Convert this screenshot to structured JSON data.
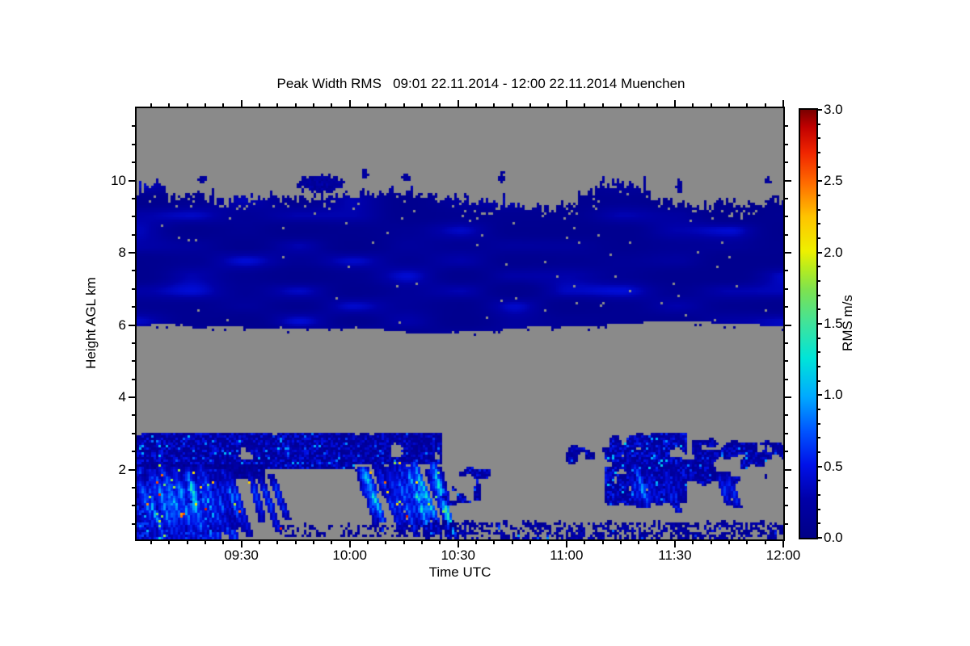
{
  "chart_data": {
    "type": "heatmap",
    "title": "Peak Width RMS   09:01 22.11.2014 - 12:00 22.11.2014 Muenchen",
    "xlabel": "Time UTC",
    "ylabel": "Height AGL km",
    "x_domain_hours": [
      9.016667,
      12.0
    ],
    "y_domain_km": [
      0,
      12
    ],
    "value_domain": [
      0.0,
      3.0
    ],
    "grid": false,
    "background_no_data_color": "#8a8a8a",
    "frame_color": "#000000",
    "x_ticks": [
      {
        "t": 9.5,
        "label": "09:30"
      },
      {
        "t": 10.0,
        "label": "10:00"
      },
      {
        "t": 10.5,
        "label": "10:30"
      },
      {
        "t": 11.0,
        "label": "11:00"
      },
      {
        "t": 11.5,
        "label": "11:30"
      },
      {
        "t": 12.0,
        "label": "12:00"
      }
    ],
    "x_minor_interval_minutes": 5,
    "y_ticks": [
      {
        "km": 2,
        "label": "2"
      },
      {
        "km": 4,
        "label": "4"
      },
      {
        "km": 6,
        "label": "6"
      },
      {
        "km": 8,
        "label": "8"
      },
      {
        "km": 10,
        "label": "10"
      }
    ],
    "y_minor_interval_km": 0.5,
    "colorbar": {
      "label": "RMS m/s",
      "ticks": [
        {
          "v": 0.0,
          "label": "0.0"
        },
        {
          "v": 0.5,
          "label": "0.5"
        },
        {
          "v": 1.0,
          "label": "1.0"
        },
        {
          "v": 1.5,
          "label": "1.5"
        },
        {
          "v": 2.0,
          "label": "2.0"
        },
        {
          "v": 2.5,
          "label": "2.5"
        },
        {
          "v": 3.0,
          "label": "3.0"
        }
      ],
      "minor_interval": 0.1,
      "stops": [
        [
          0.0,
          "#000087"
        ],
        [
          0.09,
          "#0000a8"
        ],
        [
          0.17,
          "#0011e8"
        ],
        [
          0.25,
          "#0055ff"
        ],
        [
          0.33,
          "#00aaff"
        ],
        [
          0.42,
          "#00e5d8"
        ],
        [
          0.5,
          "#3fe39c"
        ],
        [
          0.58,
          "#7ee24f"
        ],
        [
          0.63,
          "#b8ec1e"
        ],
        [
          0.67,
          "#eef000"
        ],
        [
          0.75,
          "#ffc400"
        ],
        [
          0.83,
          "#ff6a00"
        ],
        [
          0.9,
          "#f02500"
        ],
        [
          0.96,
          "#c00000"
        ],
        [
          1.0,
          "#7a0000"
        ]
      ]
    },
    "regions": [
      {
        "kind": "cloud_band",
        "seed": 11,
        "t": [
          9.016667,
          12.0
        ],
        "base_anchors": [
          [
            9.0167,
            6.02
          ],
          [
            9.5,
            5.97
          ],
          [
            10.0,
            5.93
          ],
          [
            10.45,
            5.84
          ],
          [
            10.8,
            5.95
          ],
          [
            11.2,
            6.08
          ],
          [
            11.55,
            6.1
          ],
          [
            11.8,
            6.02
          ],
          [
            12.0,
            5.97
          ]
        ],
        "top_anchors": [
          [
            9.0167,
            9.55
          ],
          [
            9.06,
            9.75
          ],
          [
            9.1,
            9.95
          ],
          [
            9.18,
            9.55
          ],
          [
            9.3,
            9.5
          ],
          [
            9.45,
            9.42
          ],
          [
            9.6,
            9.55
          ],
          [
            9.75,
            9.42
          ],
          [
            9.9,
            9.5
          ],
          [
            10.05,
            9.62
          ],
          [
            10.18,
            9.68
          ],
          [
            10.35,
            9.5
          ],
          [
            10.55,
            9.42
          ],
          [
            10.7,
            9.3
          ],
          [
            10.9,
            9.22
          ],
          [
            11.05,
            9.35
          ],
          [
            11.15,
            9.8
          ],
          [
            11.3,
            9.92
          ],
          [
            11.45,
            9.38
          ],
          [
            11.6,
            9.25
          ],
          [
            11.75,
            9.4
          ],
          [
            11.88,
            9.28
          ],
          [
            11.96,
            9.45
          ],
          [
            12.0,
            9.4
          ]
        ],
        "val": [
          0.06,
          0.45
        ]
      },
      {
        "kind": "blob",
        "seed": 21,
        "c": [
          9.87,
          9.92
        ],
        "r": [
          0.105,
          0.24
        ],
        "val": [
          0.08,
          0.3
        ]
      },
      {
        "kind": "blob",
        "seed": 22,
        "c": [
          9.32,
          10.02
        ],
        "r": [
          0.02,
          0.1
        ],
        "val": [
          0.08,
          0.25
        ]
      },
      {
        "kind": "blob",
        "seed": 23,
        "c": [
          10.07,
          10.18
        ],
        "r": [
          0.014,
          0.16
        ],
        "val": [
          0.08,
          0.25
        ]
      },
      {
        "kind": "blob",
        "seed": 24,
        "c": [
          10.26,
          10.08
        ],
        "r": [
          0.025,
          0.1
        ],
        "val": [
          0.08,
          0.25
        ]
      },
      {
        "kind": "blob",
        "seed": 25,
        "c": [
          10.7,
          10.1
        ],
        "r": [
          0.013,
          0.16
        ],
        "val": [
          0.08,
          0.25
        ]
      },
      {
        "kind": "blob",
        "seed": 26,
        "c": [
          11.52,
          9.85
        ],
        "r": [
          0.015,
          0.2
        ],
        "val": [
          0.08,
          0.25
        ]
      },
      {
        "kind": "blob",
        "seed": 27,
        "c": [
          11.93,
          10.0
        ],
        "r": [
          0.012,
          0.12
        ],
        "val": [
          0.08,
          0.25
        ]
      },
      {
        "kind": "patch_band",
        "seed": 31,
        "t": [
          9.016667,
          10.02
        ],
        "h": [
          2.05,
          3.0
        ],
        "density": 0.88,
        "val": [
          0.1,
          0.55
        ],
        "fleck": 0.05,
        "fval": [
          0.65,
          1.1
        ]
      },
      {
        "kind": "patch_band",
        "seed": 32,
        "t": [
          9.016667,
          9.6
        ],
        "h": [
          1.8,
          2.12
        ],
        "density": 0.95,
        "val": [
          0.05,
          0.3
        ],
        "fleck": 0.01,
        "fval": [
          0.5,
          0.8
        ]
      },
      {
        "kind": "patch_band",
        "seed": 30,
        "t": [
          9.016667,
          9.37
        ],
        "h": [
          0.05,
          1.95
        ],
        "density": 0.8,
        "val": [
          0.25,
          0.7
        ],
        "fleck": 0.04,
        "fval": [
          0.8,
          1.2
        ]
      },
      {
        "kind": "streaks",
        "seed": 41,
        "t": [
          9.016667,
          9.38
        ],
        "n": 26,
        "htop": [
          1.85,
          2.1
        ],
        "hbot": [
          0.0,
          0.3
        ],
        "drift": 0.05,
        "core": [
          0.7,
          1.3
        ],
        "width": 2,
        "hot": 0.02
      },
      {
        "kind": "streaks",
        "seed": 42,
        "t": [
          9.36,
          9.66
        ],
        "n": 12,
        "htop": [
          1.8,
          2.0
        ],
        "hbot": [
          0.15,
          0.65
        ],
        "drift": 0.05,
        "core": [
          0.4,
          0.85
        ],
        "width": 1,
        "hot": 0.008
      },
      {
        "kind": "patch_band",
        "seed": 33,
        "t": [
          10.0,
          10.42
        ],
        "h": [
          2.2,
          3.0
        ],
        "density": 0.82,
        "val": [
          0.1,
          0.5
        ],
        "fleck": 0.03,
        "fval": [
          0.6,
          0.95
        ]
      },
      {
        "kind": "streaks",
        "seed": 43,
        "t": [
          10.04,
          10.4
        ],
        "n": 15,
        "htop": [
          1.95,
          2.2
        ],
        "hbot": [
          0.1,
          0.55
        ],
        "drift": 0.05,
        "core": [
          0.6,
          1.25
        ],
        "width": 2,
        "hot": 0.014
      },
      {
        "kind": "patch_band",
        "seed": 34,
        "t": [
          10.42,
          10.64
        ],
        "h": [
          0.95,
          2.2
        ],
        "density": 0.5,
        "val": [
          0.12,
          0.6
        ],
        "fleck": 0.02,
        "fval": [
          0.6,
          0.9
        ]
      },
      {
        "kind": "patch_band",
        "seed": 35,
        "t": [
          10.6,
          11.0
        ],
        "h": [
          1.5,
          2.85
        ],
        "density": 0.2,
        "val": [
          0.08,
          0.4
        ],
        "fleck": 0.01,
        "fval": [
          0.5,
          0.8
        ]
      },
      {
        "kind": "patch_band",
        "seed": 36,
        "t": [
          11.0,
          11.2
        ],
        "h": [
          2.15,
          2.7
        ],
        "density": 0.55,
        "val": [
          0.08,
          0.4
        ],
        "fleck": 0.02,
        "fval": [
          0.5,
          0.8
        ]
      },
      {
        "kind": "patch_band",
        "seed": 37,
        "t": [
          11.18,
          11.55
        ],
        "h": [
          1.05,
          2.95
        ],
        "density": 0.72,
        "val": [
          0.12,
          0.6
        ],
        "fleck": 0.06,
        "fval": [
          0.65,
          1.15
        ]
      },
      {
        "kind": "streaks",
        "seed": 44,
        "t": [
          11.22,
          11.5
        ],
        "n": 7,
        "htop": [
          1.9,
          2.1
        ],
        "hbot": [
          0.8,
          1.2
        ],
        "drift": 0.05,
        "core": [
          0.4,
          0.9
        ],
        "width": 1,
        "hot": 0.006
      },
      {
        "kind": "patch_band",
        "seed": 38,
        "t": [
          11.55,
          11.92
        ],
        "h": [
          1.6,
          2.9
        ],
        "density": 0.6,
        "val": [
          0.1,
          0.5
        ],
        "fleck": 0.04,
        "fval": [
          0.6,
          1.0
        ]
      },
      {
        "kind": "streaks",
        "seed": 45,
        "t": [
          11.7,
          11.85
        ],
        "n": 4,
        "htop": [
          1.7,
          1.9
        ],
        "hbot": [
          0.85,
          1.1
        ],
        "drift": 0.05,
        "core": [
          0.35,
          0.7
        ],
        "width": 1,
        "hot": 0.005
      },
      {
        "kind": "patch_band",
        "seed": 39,
        "t": [
          11.9,
          12.0
        ],
        "h": [
          2.2,
          2.8
        ],
        "density": 0.6,
        "val": [
          0.1,
          0.45
        ],
        "fleck": 0.03,
        "fval": [
          0.5,
          0.9
        ]
      },
      {
        "kind": "speckle",
        "seed": 51,
        "t": [
          9.68,
          10.35
        ],
        "h": [
          0.18,
          0.42
        ],
        "density": 0.4,
        "val": [
          0.05,
          0.3
        ],
        "fleck": 0.02,
        "fval": [
          0.5,
          0.95
        ]
      },
      {
        "kind": "speckle",
        "seed": 52,
        "t": [
          10.35,
          12.0
        ],
        "h": [
          0.1,
          0.5
        ],
        "density": 0.5,
        "val": [
          0.05,
          0.35
        ],
        "fleck": 0.025,
        "fval": [
          0.5,
          1.0
        ]
      },
      {
        "kind": "hole",
        "seed": 61,
        "c": [
          10.215,
          2.52
        ],
        "r": [
          0.028,
          0.2
        ]
      }
    ]
  }
}
